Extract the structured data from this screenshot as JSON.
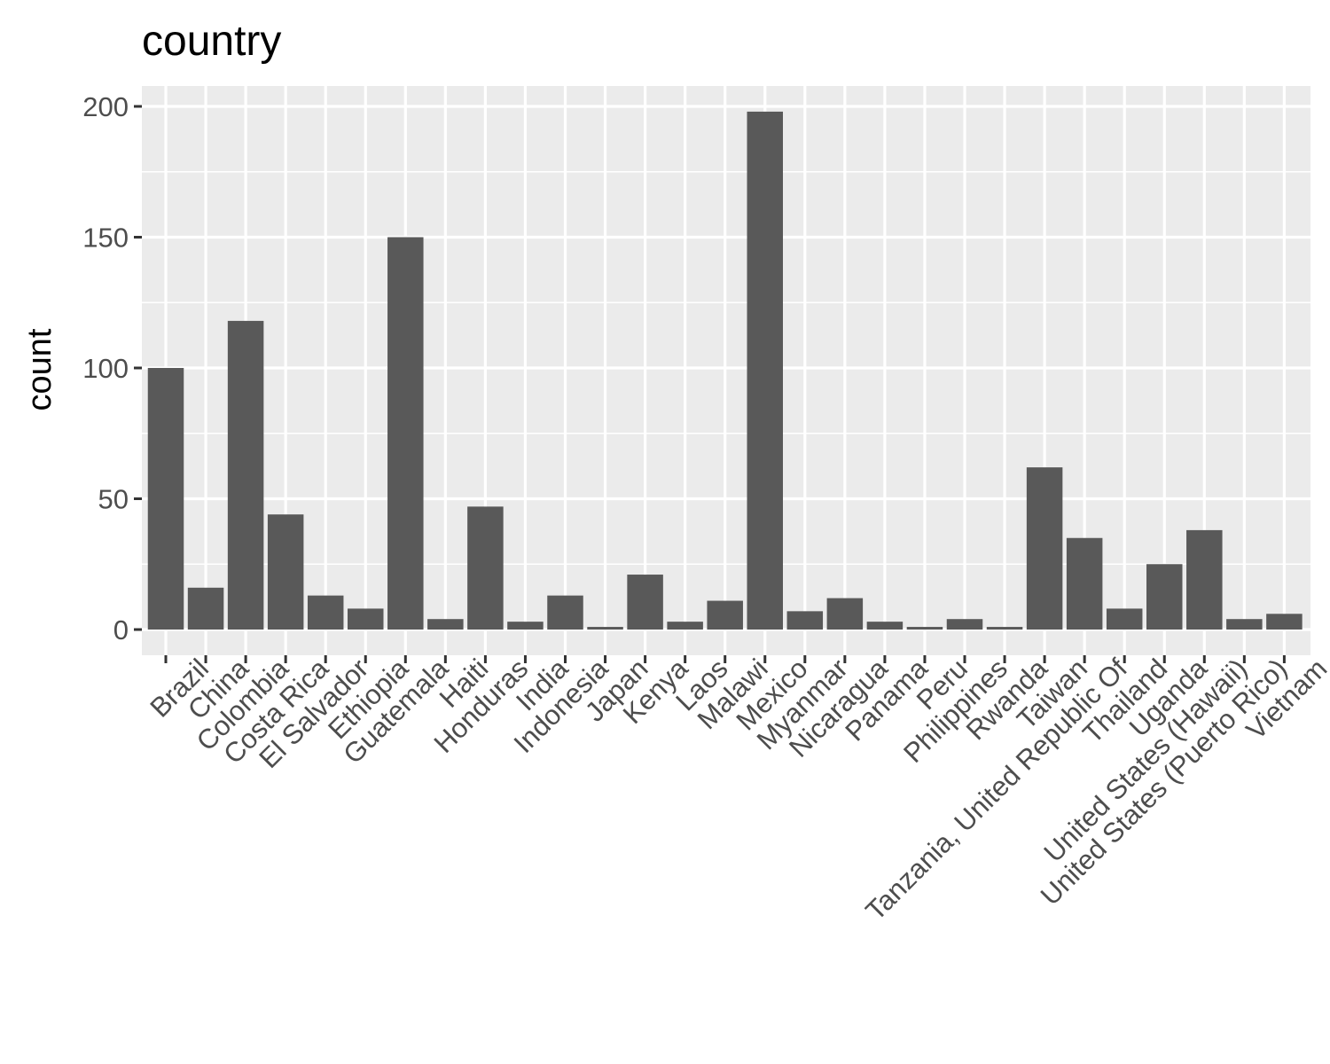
{
  "chart_data": {
    "type": "bar",
    "title": "country",
    "xlabel": "",
    "ylabel": "count",
    "ylim": [
      0,
      200
    ],
    "yticks": [
      0,
      50,
      100,
      150,
      200
    ],
    "grid": true,
    "categories": [
      "Brazil",
      "China",
      "Colombia",
      "Costa Rica",
      "El Salvador",
      "Ethiopia",
      "Guatemala",
      "Haiti",
      "Honduras",
      "India",
      "Indonesia",
      "Japan",
      "Kenya",
      "Laos",
      "Malawi",
      "Mexico",
      "Myanmar",
      "Nicaragua",
      "Panama",
      "Peru",
      "Philippines",
      "Rwanda",
      "Taiwan",
      "Tanzania, United Republic Of",
      "Thailand",
      "Uganda",
      "United States (Hawaii)",
      "United States (Puerto Rico)",
      "Vietnam"
    ],
    "values": [
      100,
      16,
      118,
      44,
      13,
      8,
      150,
      4,
      47,
      3,
      13,
      1,
      21,
      3,
      11,
      198,
      7,
      12,
      3,
      1,
      4,
      1,
      62,
      35,
      8,
      25,
      38,
      4,
      6
    ],
    "colors": {
      "bar": "#595959",
      "panel": "#ebebeb",
      "grid": "#ffffff",
      "tick": "#333333",
      "tick_label": "#4d4d4d"
    }
  }
}
